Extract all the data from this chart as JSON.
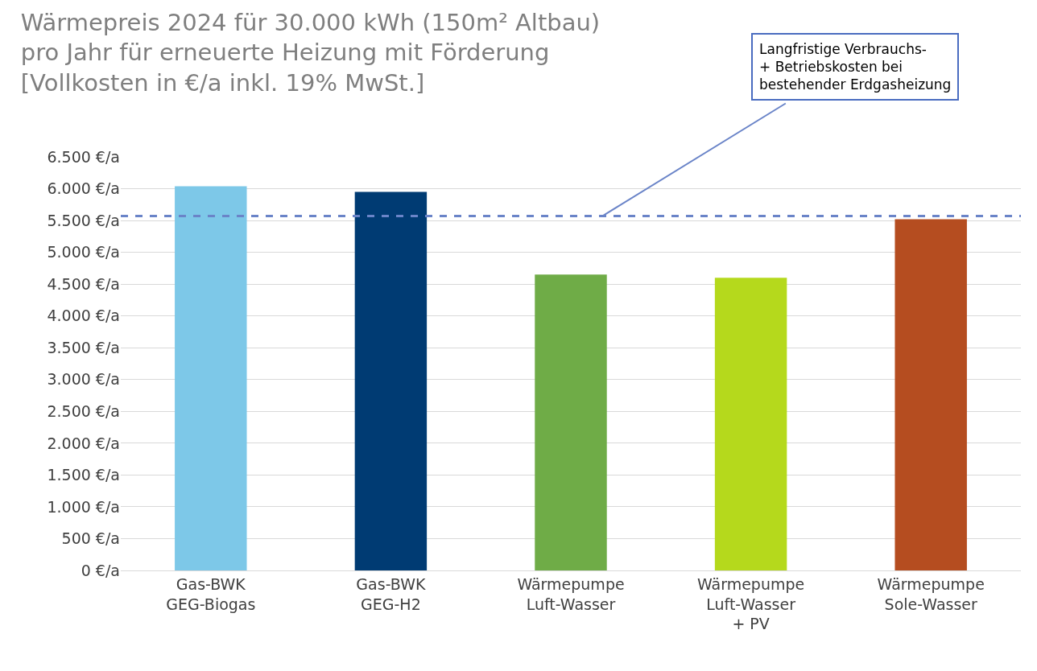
{
  "chart_data": {
    "type": "bar",
    "title": "Wärmepreis 2024 für 30.000 kWh (150m² Altbau)\npro Jahr für erneuerte Heizung mit Förderung\n[Vollkosten in €/a inkl. 19% MwSt.]",
    "categories": [
      "Gas-BWK\nGEG-Biogas",
      "Gas-BWK\nGEG-H2",
      "Wärmepumpe\nLuft-Wasser",
      "Wärmepumpe\nLuft-Wasser\n+ PV",
      "Wärmepumpe\nSole-Wasser"
    ],
    "values": [
      6040,
      5950,
      4650,
      4600,
      5520
    ],
    "colors": [
      "#7dc8e8",
      "#003b73",
      "#6fac47",
      "#b5d91c",
      "#b54d20"
    ],
    "ylim": [
      0,
      6500
    ],
    "yticks": [
      {
        "value": 0,
        "label": "0 €/a"
      },
      {
        "value": 500,
        "label": "500 €/a"
      },
      {
        "value": 1000,
        "label": "1.000 €/a"
      },
      {
        "value": 1500,
        "label": "1.500 €/a"
      },
      {
        "value": 2000,
        "label": "2.000 €/a"
      },
      {
        "value": 2500,
        "label": "2.500 €/a"
      },
      {
        "value": 3000,
        "label": "3.000 €/a"
      },
      {
        "value": 3500,
        "label": "3.500 €/a"
      },
      {
        "value": 4000,
        "label": "4.000 €/a"
      },
      {
        "value": 4500,
        "label": "4.500 €/a"
      },
      {
        "value": 5000,
        "label": "5.000 €/a"
      },
      {
        "value": 5500,
        "label": "5.500 €/a"
      },
      {
        "value": 6000,
        "label": "6.000 €/a"
      },
      {
        "value": 6500,
        "label": "6.500 €/a"
      }
    ],
    "ref_lines": [
      {
        "axis": "y",
        "value": 5570,
        "label": "Langfristige Verbrauchs-\n+ Betriebskosten bei\nbestehender Erdgasheizung",
        "color": "#6a84c8",
        "line_style": "dashed"
      }
    ],
    "grid": "y"
  }
}
